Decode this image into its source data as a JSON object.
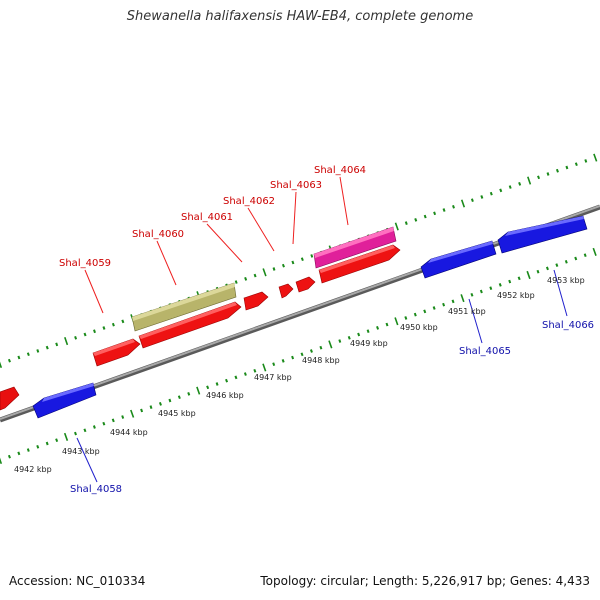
{
  "title": "Shewanella halifaxensis HAW-EB4, complete genome",
  "footer": {
    "accession": "Accession: NC_010334",
    "topology": "Topology: circular; Length: 5,226,917 bp; Genes: 4,433"
  },
  "colors": {
    "forward_gene": "#ee1010",
    "reverse_gene": "#1a1ae6",
    "selected_gene": "#e0209a",
    "repeat_region": "#b8b46a",
    "backbone": "#808080",
    "ticks": "#1a8a1a",
    "forward_label": "#cc0000",
    "reverse_label": "#1010aa"
  },
  "scale": {
    "unit": "kbp",
    "ticks": [
      "4942 kbp",
      "4943 kbp",
      "4944 kbp",
      "4945 kbp",
      "4946 kbp",
      "4947 kbp",
      "4948 kbp",
      "4949 kbp",
      "4950 kbp",
      "4951 kbp",
      "4952 kbp",
      "4953 kbp"
    ]
  },
  "gene_labels_forward": [
    "Shal_4059",
    "Shal_4060",
    "Shal_4061",
    "Shal_4062",
    "Shal_4063",
    "Shal_4064"
  ],
  "gene_labels_reverse": [
    "Shal_4058",
    "Shal_4065",
    "Shal_4066"
  ]
}
